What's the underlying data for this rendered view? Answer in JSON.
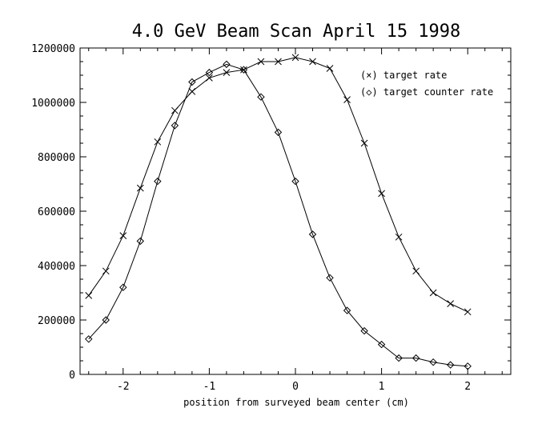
{
  "chart_data": {
    "type": "line",
    "title": "4.0 GeV Beam Scan April 15 1998",
    "xlabel": "position from surveyed beam center (cm)",
    "ylabel": "",
    "xlim": [
      -2.5,
      2.5
    ],
    "ylim": [
      0,
      1200000
    ],
    "xticks": [
      -2,
      -1,
      0,
      1,
      2
    ],
    "xtick_labels": [
      "-2",
      "-1",
      "0",
      "1",
      "2"
    ],
    "yticks": [
      0,
      200000,
      400000,
      600000,
      800000,
      1000000,
      1200000
    ],
    "ytick_labels": [
      "0",
      "200000",
      "400000",
      "600000",
      "800000",
      "1000000",
      "1200000"
    ],
    "grid": false,
    "legend_position": "top-right",
    "series": [
      {
        "name": "target rate",
        "legend_label": "(×) target rate",
        "marker": "x",
        "x": [
          -2.4,
          -2.2,
          -2.0,
          -1.8,
          -1.6,
          -1.4,
          -1.2,
          -1.0,
          -0.8,
          -0.6,
          -0.4,
          -0.2,
          0.0,
          0.2,
          0.4,
          0.6,
          0.8,
          1.0,
          1.2,
          1.4,
          1.6,
          1.8,
          2.0
        ],
        "values": [
          290000,
          380000,
          510000,
          685000,
          855000,
          970000,
          1040000,
          1090000,
          1110000,
          1120000,
          1150000,
          1150000,
          1165000,
          1150000,
          1125000,
          1010000,
          850000,
          665000,
          505000,
          380000,
          300000,
          260000,
          230000
        ]
      },
      {
        "name": "target counter rate",
        "legend_label": "(◇) target counter rate",
        "marker": "diamond",
        "x": [
          -2.4,
          -2.2,
          -2.0,
          -1.8,
          -1.6,
          -1.4,
          -1.2,
          -1.0,
          -0.8,
          -0.6,
          -0.4,
          -0.2,
          0.0,
          0.2,
          0.4,
          0.6,
          0.8,
          1.0,
          1.2,
          1.4,
          1.6,
          1.8,
          2.0
        ],
        "values": [
          130000,
          200000,
          320000,
          490000,
          710000,
          915000,
          1075000,
          1110000,
          1140000,
          1120000,
          1020000,
          890000,
          710000,
          515000,
          355000,
          235000,
          160000,
          110000,
          60000,
          60000,
          45000,
          35000,
          30000
        ]
      }
    ]
  }
}
